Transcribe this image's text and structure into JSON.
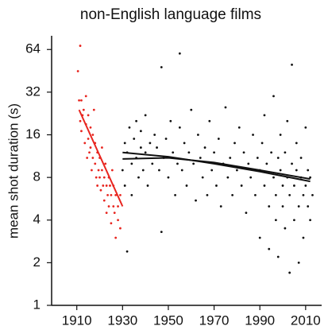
{
  "chart_data": {
    "type": "scatter",
    "title": "non-English language films",
    "y_label": "mean shot duration (s)",
    "xlim": [
      1899,
      2017
    ],
    "xticks": [
      1910,
      1930,
      1950,
      1970,
      1990,
      2010
    ],
    "ylim": [
      1,
      80
    ],
    "yticks": [
      1,
      2,
      4,
      8,
      16,
      32,
      64
    ],
    "y_log": true,
    "series": [
      {
        "color": "#e8251f",
        "style": "points",
        "x": [
          1910.5,
          1911,
          1911.5,
          1912,
          1912,
          1913,
          1913.5,
          1914,
          1914,
          1914.5,
          1915,
          1915,
          1915.5,
          1916,
          1916,
          1916.5,
          1917,
          1917,
          1917.5,
          1918,
          1918,
          1918.5,
          1919,
          1919,
          1919.5,
          1920,
          1920,
          1920.5,
          1921,
          1921,
          1921.5,
          1922,
          1922,
          1922.5,
          1923,
          1923,
          1923.5,
          1924,
          1924,
          1924.5,
          1925,
          1925,
          1925.5,
          1926,
          1926,
          1926.5,
          1927,
          1927,
          1928,
          1928,
          1929,
          1929,
          1912.5,
          1911.5
        ],
        "values": [
          45,
          28,
          20,
          28,
          17,
          24,
          14,
          19,
          30,
          11,
          15,
          22,
          12,
          13,
          18,
          9,
          16,
          11,
          24,
          10,
          14,
          8,
          12,
          7,
          9,
          8,
          11,
          6.5,
          9,
          13,
          7,
          8,
          5.5,
          10,
          7,
          4.5,
          6,
          8,
          5,
          7,
          6,
          3.8,
          9,
          5,
          7,
          4.5,
          6,
          3,
          5,
          4,
          6,
          3.5,
          22,
          68
        ]
      },
      {
        "color": "#111111",
        "style": "points",
        "x": [
          1930,
          1931,
          1931,
          1932,
          1932,
          1933,
          1934,
          1934,
          1935,
          1936,
          1936,
          1937,
          1938,
          1938,
          1939,
          1940,
          1940,
          1941,
          1942,
          1943,
          1944,
          1945,
          1946,
          1947,
          1947,
          1948,
          1949,
          1950,
          1951,
          1952,
          1953,
          1954,
          1955,
          1955,
          1956,
          1957,
          1958,
          1959,
          1960,
          1961,
          1962,
          1963,
          1964,
          1965,
          1966,
          1967,
          1968,
          1969,
          1970,
          1971,
          1972,
          1973,
          1974,
          1975,
          1976,
          1977,
          1978,
          1979,
          1980,
          1981,
          1982,
          1983,
          1984,
          1985,
          1986,
          1987,
          1988,
          1989,
          1990,
          1990,
          1991,
          1992,
          1992,
          1993,
          1994,
          1994,
          1995,
          1996,
          1996,
          1997,
          1997,
          1998,
          1998,
          1999,
          1999,
          2000,
          2000,
          2001,
          2001,
          2002,
          2002,
          2003,
          2003,
          2004,
          2004,
          2005,
          2005,
          2006,
          2006,
          2007,
          2007,
          2008,
          2008,
          2009,
          2009,
          2010,
          2010,
          2011,
          2011,
          2012,
          2012,
          2013
        ],
        "values": [
          9,
          14,
          7,
          12,
          2.4,
          18,
          10,
          6,
          15,
          11,
          20,
          8,
          13,
          17,
          9,
          12,
          22,
          7,
          14,
          10,
          16,
          13,
          9,
          48,
          3.3,
          11,
          15,
          8,
          20,
          12,
          6,
          10,
          18,
          60,
          9,
          14,
          7,
          12,
          24,
          10,
          5.5,
          16,
          11,
          8,
          13,
          6,
          20,
          9,
          12,
          7,
          15,
          5,
          10,
          25,
          8,
          11,
          6,
          14,
          9,
          18,
          7,
          12,
          4.5,
          10,
          8,
          16,
          6,
          11,
          9,
          3,
          14,
          7,
          22,
          10,
          5,
          2.5,
          12,
          8,
          30,
          6,
          4,
          11,
          2.2,
          9,
          16,
          7,
          5,
          12,
          3.5,
          8,
          20,
          6,
          1.7,
          10,
          50,
          7,
          4,
          9,
          14,
          5,
          2,
          8,
          11,
          6,
          3,
          7,
          18,
          5,
          9,
          4,
          8,
          6
        ]
      },
      {
        "color": "#e8251f",
        "style": "line",
        "x": [
          1911,
          1930
        ],
        "values": [
          24,
          5
        ]
      },
      {
        "color": "#111111",
        "style": "line",
        "x": [
          1930,
          1950,
          1970,
          1990,
          2012
        ],
        "values": [
          12,
          11.2,
          10,
          8.8,
          7.5
        ]
      },
      {
        "color": "#111111",
        "style": "line",
        "x": [
          1930,
          1950,
          1970,
          1990,
          2012
        ],
        "values": [
          10.8,
          11,
          10.2,
          9,
          7.8
        ]
      }
    ]
  }
}
